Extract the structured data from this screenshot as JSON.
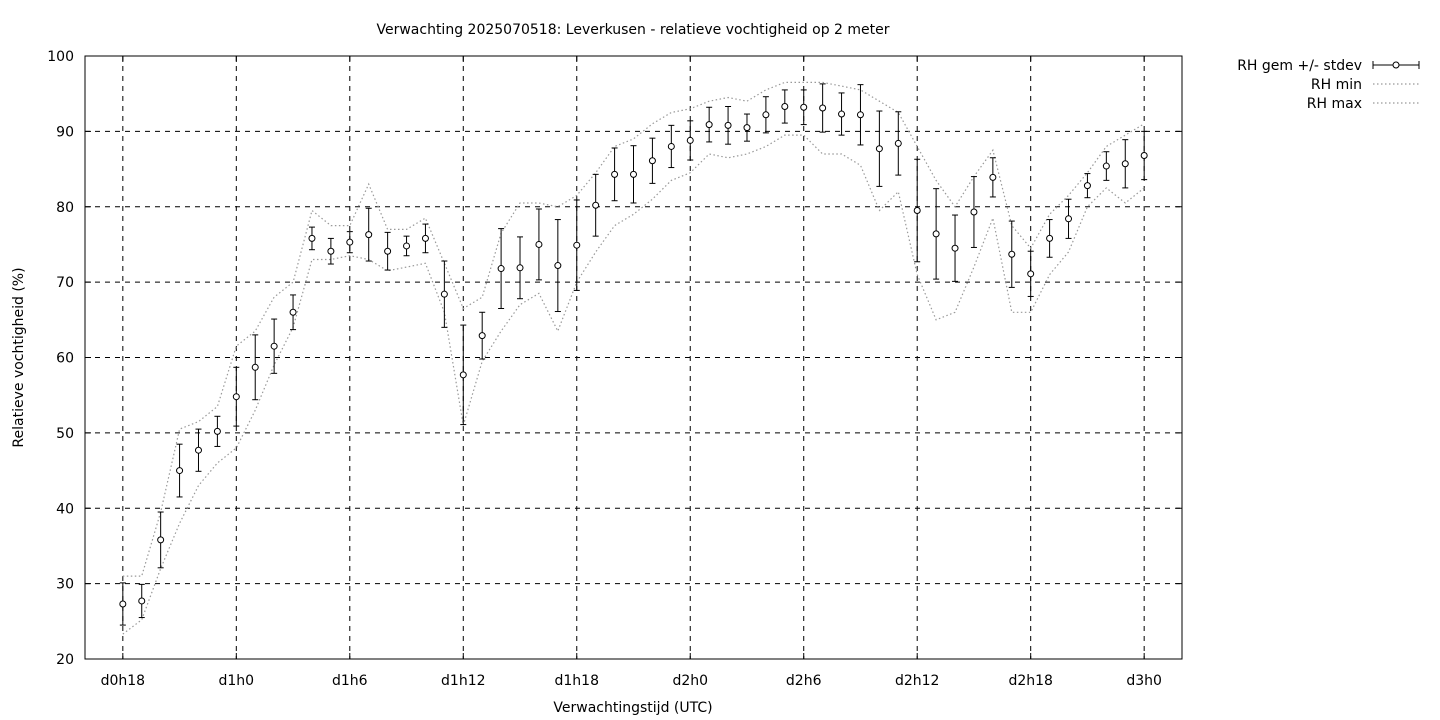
{
  "chart_data": {
    "type": "line",
    "title": "Verwachting 2025070518: Leverkusen - relatieve vochtigheid op 2 meter",
    "xlabel": "Verwachtingstijd (UTC)",
    "ylabel": "Relatieve vochtigheid (%)",
    "ylim": [
      20,
      100
    ],
    "yticks": [
      20,
      30,
      40,
      50,
      60,
      70,
      80,
      90,
      100
    ],
    "x_unit": "forecast lead time (hours)",
    "xlim": [
      -2,
      56
    ],
    "xticks": [
      {
        "value": 0,
        "label": "d0h18"
      },
      {
        "value": 6,
        "label": "d1h0"
      },
      {
        "value": 12,
        "label": "d1h6"
      },
      {
        "value": 18,
        "label": "d1h12"
      },
      {
        "value": 24,
        "label": "d1h18"
      },
      {
        "value": 30,
        "label": "d2h0"
      },
      {
        "value": 36,
        "label": "d2h6"
      },
      {
        "value": 42,
        "label": "d2h12"
      },
      {
        "value": 48,
        "label": "d2h18"
      },
      {
        "value": 54,
        "label": "d3h0"
      }
    ],
    "grid": true,
    "legend_position": "top-right outside",
    "x": [
      0,
      1,
      2,
      3,
      4,
      5,
      6,
      7,
      8,
      9,
      10,
      11,
      12,
      13,
      14,
      15,
      16,
      17,
      18,
      19,
      20,
      21,
      22,
      23,
      24,
      25,
      26,
      27,
      28,
      29,
      30,
      31,
      32,
      33,
      34,
      35,
      36,
      37,
      38,
      39,
      40,
      41,
      42,
      43,
      44,
      45,
      46,
      47,
      48,
      49,
      50,
      51,
      52,
      53,
      54
    ],
    "series": [
      {
        "name": "RH gem +/- stdev",
        "style": "points with errorbars",
        "mean": [
          27.3,
          27.7,
          35.8,
          45.0,
          47.7,
          50.2,
          54.8,
          58.7,
          61.5,
          66.0,
          75.8,
          74.1,
          75.3,
          76.3,
          74.1,
          74.8,
          75.8,
          68.4,
          57.7,
          62.9,
          71.8,
          71.9,
          75.0,
          72.2,
          74.9,
          80.2,
          84.3,
          84.3,
          86.1,
          88.0,
          88.8,
          90.9,
          90.8,
          90.5,
          92.2,
          93.3,
          93.2,
          93.1,
          92.3,
          92.2,
          87.7,
          88.4,
          79.5,
          76.4,
          74.5,
          79.3,
          83.9,
          73.7,
          71.1,
          75.8,
          78.4,
          82.8,
          85.4,
          85.7,
          86.8
        ],
        "stdev": [
          2.8,
          2.2,
          3.7,
          3.5,
          2.8,
          2.0,
          3.9,
          4.3,
          3.6,
          2.3,
          1.5,
          1.7,
          1.4,
          3.5,
          2.5,
          1.3,
          1.9,
          4.4,
          6.6,
          3.1,
          5.3,
          4.1,
          4.7,
          6.1,
          6.0,
          4.1,
          3.5,
          3.8,
          3.0,
          2.8,
          2.6,
          2.3,
          2.5,
          1.8,
          2.4,
          2.2,
          2.3,
          3.2,
          2.8,
          4.0,
          5.0,
          4.2,
          6.8,
          6.0,
          4.4,
          4.7,
          2.6,
          4.4,
          3.0,
          2.5,
          2.6,
          1.6,
          1.9,
          3.2,
          3.2
        ]
      },
      {
        "name": "RH min",
        "style": "dotted line",
        "values": [
          23.3,
          25.2,
          32.0,
          38.0,
          43.0,
          46.0,
          48.0,
          53.0,
          59.0,
          64.0,
          73.0,
          73.0,
          73.5,
          73.0,
          71.5,
          72.0,
          72.5,
          66.0,
          51.0,
          59.5,
          63.5,
          67.0,
          68.5,
          63.5,
          70.0,
          74.0,
          77.5,
          79.0,
          81.0,
          83.5,
          84.5,
          87.0,
          86.5,
          87.0,
          88.0,
          89.5,
          89.5,
          87.0,
          87.0,
          85.5,
          79.5,
          82.0,
          71.0,
          65.0,
          66.0,
          72.0,
          78.5,
          66.0,
          66.0,
          71.0,
          74.0,
          80.0,
          82.5,
          80.5,
          82.5
        ]
      },
      {
        "name": "RH max",
        "style": "dotted line",
        "values": [
          31.0,
          31.0,
          39.5,
          50.5,
          51.5,
          53.5,
          61.5,
          63.5,
          68.0,
          70.0,
          79.5,
          77.5,
          77.5,
          83.0,
          77.0,
          77.0,
          78.5,
          72.5,
          66.5,
          68.0,
          76.5,
          80.5,
          80.5,
          80.0,
          81.5,
          84.5,
          88.0,
          89.0,
          91.0,
          92.5,
          93.0,
          94.0,
          94.5,
          94.0,
          95.5,
          96.5,
          96.5,
          96.5,
          96.0,
          95.5,
          94.0,
          92.5,
          88.0,
          83.5,
          80.0,
          84.0,
          87.5,
          77.5,
          74.5,
          79.0,
          81.5,
          84.5,
          88.0,
          89.5,
          91.0
        ]
      }
    ]
  }
}
